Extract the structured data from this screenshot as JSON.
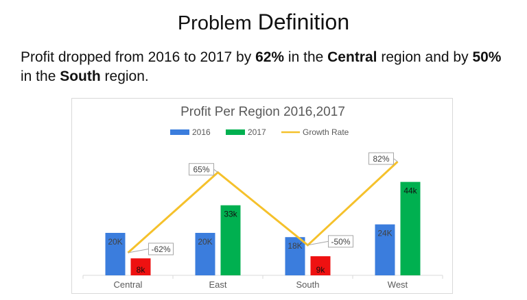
{
  "slide": {
    "title_part1": "Problem",
    "title_part2": "Definition",
    "summary": {
      "t1": "Profit dropped from 2016 to 2017 by ",
      "b1": "62%",
      "t2": " in the ",
      "b2": "Central",
      "t3": " region and by ",
      "b3": "50%",
      "t4": " in the ",
      "b4": "South",
      "t5": " region."
    }
  },
  "chart_data": {
    "type": "bar",
    "title": "Profit Per Region 2016,2017",
    "categories": [
      "Central",
      "East",
      "South",
      "West"
    ],
    "series": [
      {
        "name": "2016",
        "values": [
          20,
          20,
          18,
          24
        ],
        "labels": [
          "20K",
          "20K",
          "18K",
          "24K"
        ],
        "color": "#3b7ddd"
      },
      {
        "name": "2017",
        "values": [
          8,
          33,
          9,
          44
        ],
        "labels": [
          "8k",
          "33k",
          "9k",
          "44k"
        ],
        "color": "#00b050"
      },
      {
        "name": "Growth Rate",
        "type": "line",
        "values": [
          -62,
          65,
          -50,
          82
        ],
        "labels": [
          "-62%",
          "65%",
          "-50%",
          "82%"
        ],
        "color": "#f5c12b"
      }
    ],
    "legend": "top",
    "grid": false,
    "colors": {
      "low_2017": "#ee1111"
    }
  }
}
